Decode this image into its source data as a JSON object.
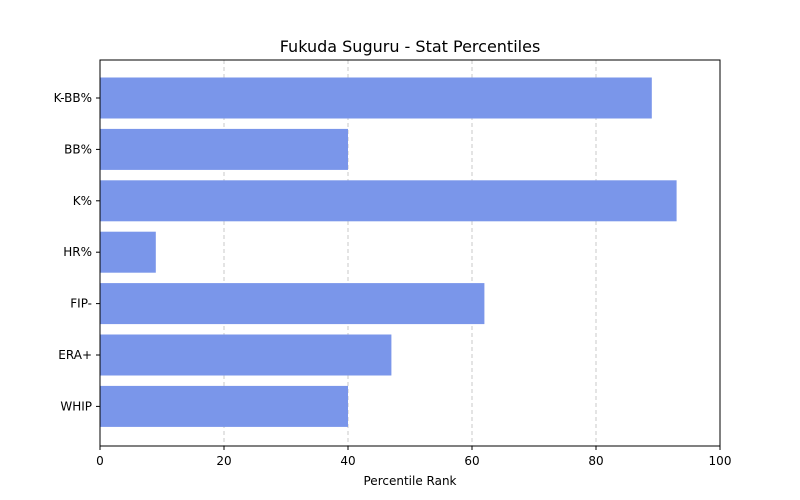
{
  "chart_data": {
    "type": "bar",
    "orientation": "horizontal",
    "title": "Fukuda Suguru - Stat Percentiles",
    "xlabel": "Percentile Rank",
    "ylabel": "",
    "xlim": [
      0,
      100
    ],
    "xticks": [
      0,
      20,
      40,
      60,
      80,
      100
    ],
    "grid": "x-dashed",
    "categories": [
      "K-BB%",
      "BB%",
      "K%",
      "HR%",
      "FIP-",
      "ERA+",
      "WHIP"
    ],
    "values": [
      89,
      40,
      93,
      9,
      62,
      47,
      40
    ],
    "bar_color": "#7a96ea"
  }
}
